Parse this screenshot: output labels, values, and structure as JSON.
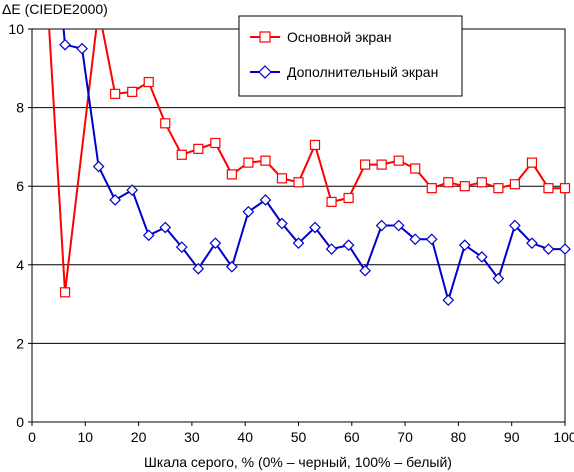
{
  "chart_data": {
    "type": "line",
    "title": "",
    "ylabel": "ΔE (CIEDE2000)",
    "xlabel": "Шкала серого, % (0% – черный, 100% – белый)",
    "xlim": [
      0,
      100
    ],
    "ylim": [
      0,
      10
    ],
    "xticks": [
      0,
      10,
      20,
      30,
      40,
      50,
      60,
      70,
      80,
      90,
      100
    ],
    "yticks": [
      0,
      2,
      4,
      6,
      8,
      10
    ],
    "grid": "horizontal",
    "legend_position": "top-right",
    "series": [
      {
        "name": "Основной экран",
        "color": "#ff0000",
        "marker": "square",
        "x": [
          3,
          6.2,
          12.5,
          15.6,
          18.8,
          21.9,
          25,
          28.1,
          31.2,
          34.4,
          37.5,
          40.6,
          43.8,
          46.9,
          50,
          53.1,
          56.2,
          59.4,
          62.5,
          65.6,
          68.8,
          71.9,
          75,
          78.1,
          81.2,
          84.4,
          87.5,
          90.6,
          93.8,
          96.9,
          100
        ],
        "y": [
          10.5,
          3.3,
          10.5,
          8.35,
          8.4,
          8.65,
          7.6,
          6.8,
          6.95,
          7.1,
          6.3,
          6.6,
          6.65,
          6.2,
          6.1,
          7.05,
          5.6,
          5.7,
          6.55,
          6.55,
          6.65,
          6.45,
          5.95,
          6.1,
          6.0,
          6.1,
          5.95,
          6.05,
          6.6,
          5.95,
          5.95
        ],
        "marker_indices": [
          1,
          3,
          4,
          5,
          6,
          7,
          8,
          9,
          10,
          11,
          12,
          13,
          14,
          15,
          16,
          17,
          18,
          19,
          20,
          21,
          22,
          23,
          24,
          25,
          26,
          27,
          28,
          29,
          30
        ]
      },
      {
        "name": "Дополнительный экран",
        "color": "#0000cc",
        "marker": "diamond",
        "x": [
          5.6,
          6.2,
          9.4,
          12.5,
          15.6,
          18.8,
          21.9,
          25,
          28.1,
          31.2,
          34.4,
          37.5,
          40.6,
          43.8,
          46.9,
          50,
          53.1,
          56.2,
          59.4,
          62.5,
          65.6,
          68.8,
          71.9,
          75,
          78.1,
          81.2,
          84.4,
          87.5,
          90.6,
          93.8,
          96.9,
          100
        ],
        "y": [
          10.5,
          9.6,
          9.5,
          6.5,
          5.65,
          5.9,
          4.75,
          4.95,
          4.45,
          3.9,
          4.55,
          3.95,
          5.35,
          5.65,
          5.05,
          4.55,
          4.95,
          4.4,
          4.5,
          3.85,
          5.0,
          5.0,
          4.65,
          4.65,
          3.1,
          4.5,
          4.2,
          3.65,
          5.0,
          4.55,
          4.4,
          4.4
        ],
        "marker_indices": [
          1,
          2,
          3,
          4,
          5,
          6,
          7,
          8,
          9,
          10,
          11,
          12,
          13,
          14,
          15,
          16,
          17,
          18,
          19,
          20,
          21,
          22,
          23,
          24,
          25,
          26,
          27,
          28,
          29,
          30,
          31
        ]
      }
    ]
  }
}
